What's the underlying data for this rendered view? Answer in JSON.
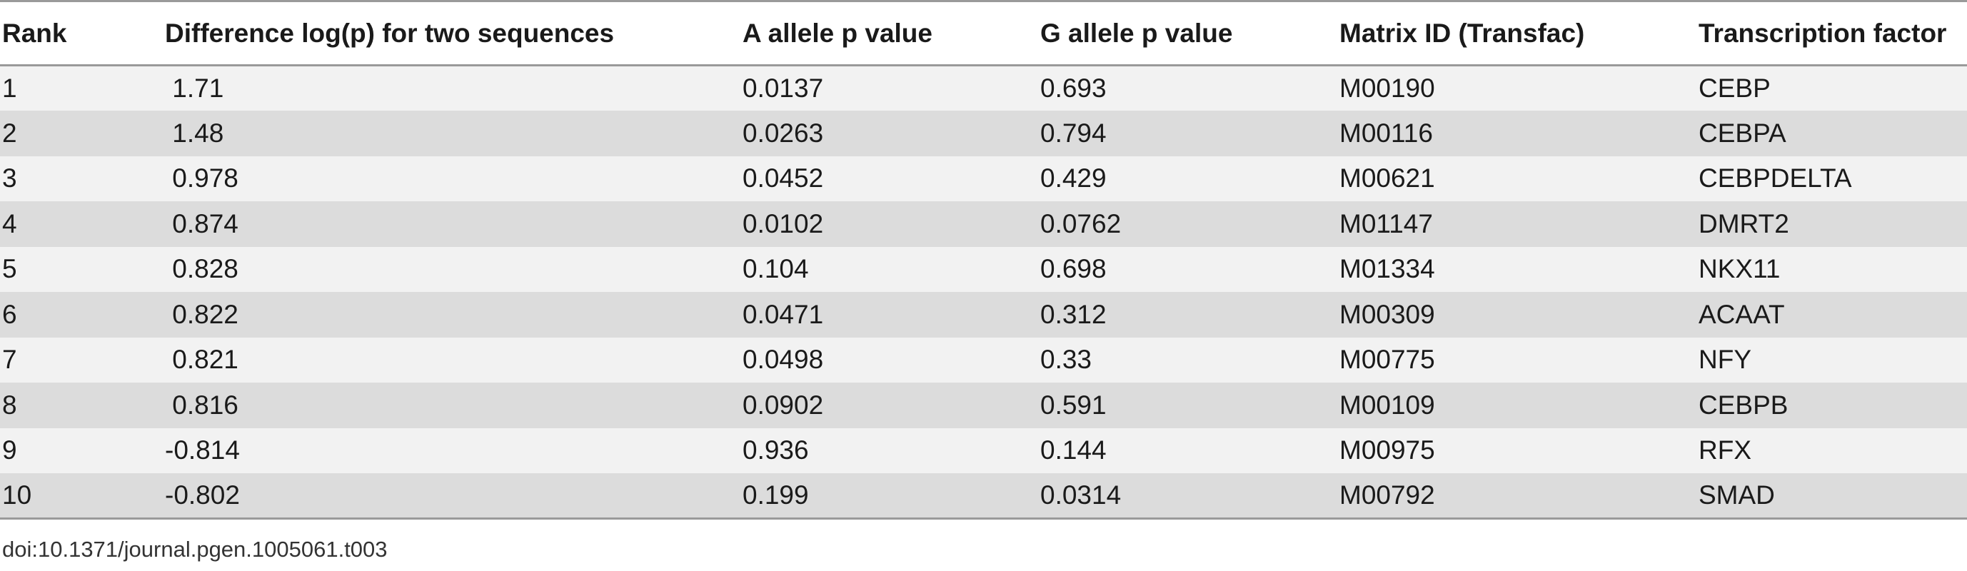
{
  "table": {
    "headers": [
      "Rank",
      "Difference log(p) for two sequences",
      "A allele p value",
      "G allele p value",
      "Matrix ID (Transfac)",
      "Transcription factor"
    ],
    "rows": [
      [
        "1",
        " 1.71",
        "0.0137",
        "0.693",
        "M00190",
        "CEBP"
      ],
      [
        "2",
        " 1.48",
        "0.0263",
        "0.794",
        "M00116",
        "CEBPA"
      ],
      [
        "3",
        " 0.978",
        "0.0452",
        "0.429",
        "M00621",
        "CEBPDELTA"
      ],
      [
        "4",
        " 0.874",
        "0.0102",
        "0.0762",
        "M01147",
        "DMRT2"
      ],
      [
        "5",
        " 0.828",
        "0.104",
        "0.698",
        "M01334",
        "NKX11"
      ],
      [
        "6",
        " 0.822",
        "0.0471",
        "0.312",
        "M00309",
        "ACAAT"
      ],
      [
        "7",
        " 0.821",
        "0.0498",
        "0.33",
        "M00775",
        "NFY"
      ],
      [
        "8",
        " 0.816",
        "0.0902",
        "0.591",
        "M00109",
        "CEBPB"
      ],
      [
        "9",
        "-0.814",
        "0.936",
        "0.144",
        "M00975",
        "RFX"
      ],
      [
        "10",
        "-0.802",
        "0.199",
        "0.0314",
        "M00792",
        "SMAD"
      ]
    ]
  },
  "footer": {
    "doi": "doi:10.1371/journal.pgen.1005061.t003"
  }
}
